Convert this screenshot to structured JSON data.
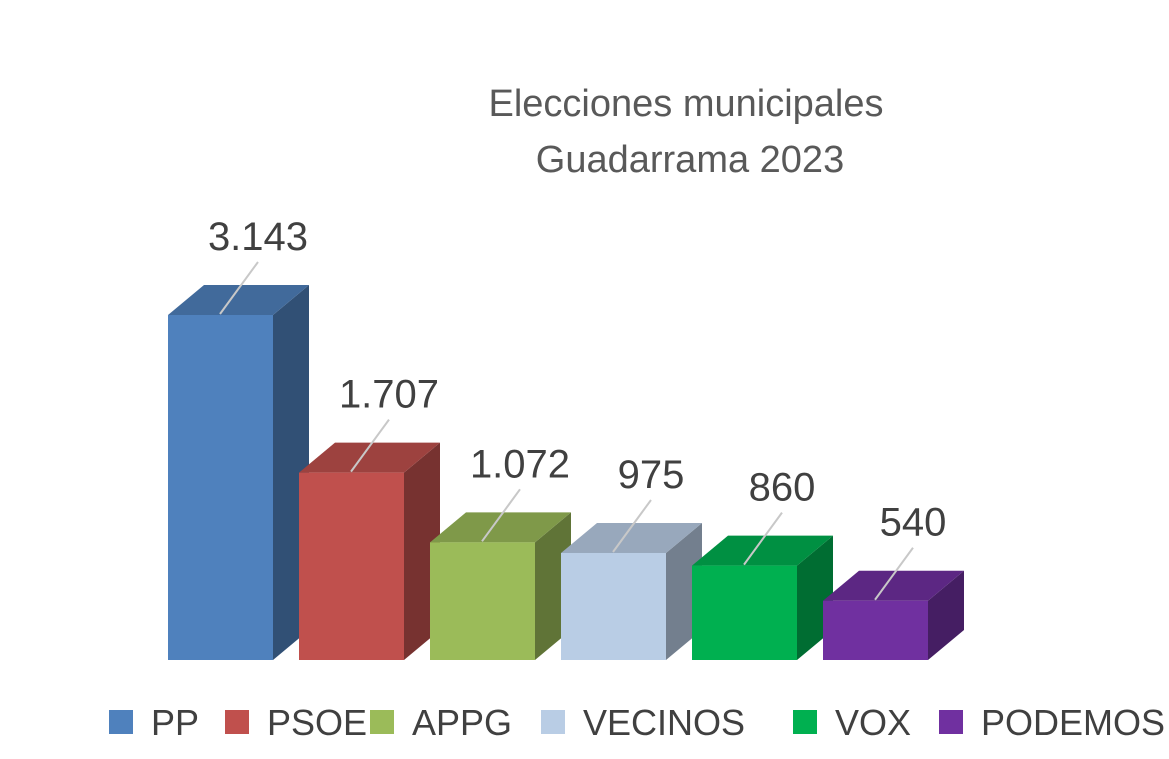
{
  "chart_data": {
    "type": "bar",
    "title": [
      "Elecciones municipales",
      "Guadarrama 2023"
    ],
    "categories": [
      "PP",
      "PSOE",
      "APPG",
      "VECINOS",
      "VOX",
      "PODEMOS"
    ],
    "values": [
      3143,
      1707,
      1072,
      975,
      860,
      540
    ],
    "data_labels": [
      "3.143",
      "1.707",
      "1.072",
      "975",
      "860",
      "540"
    ],
    "colors": [
      "#4F81BD",
      "#C0504D",
      "#9BBB59",
      "#B9CDE5",
      "#00B050",
      "#7030A0"
    ],
    "legend_position": "bottom",
    "grid": false,
    "style": "3d-column",
    "ylim": [
      0,
      3143
    ]
  }
}
